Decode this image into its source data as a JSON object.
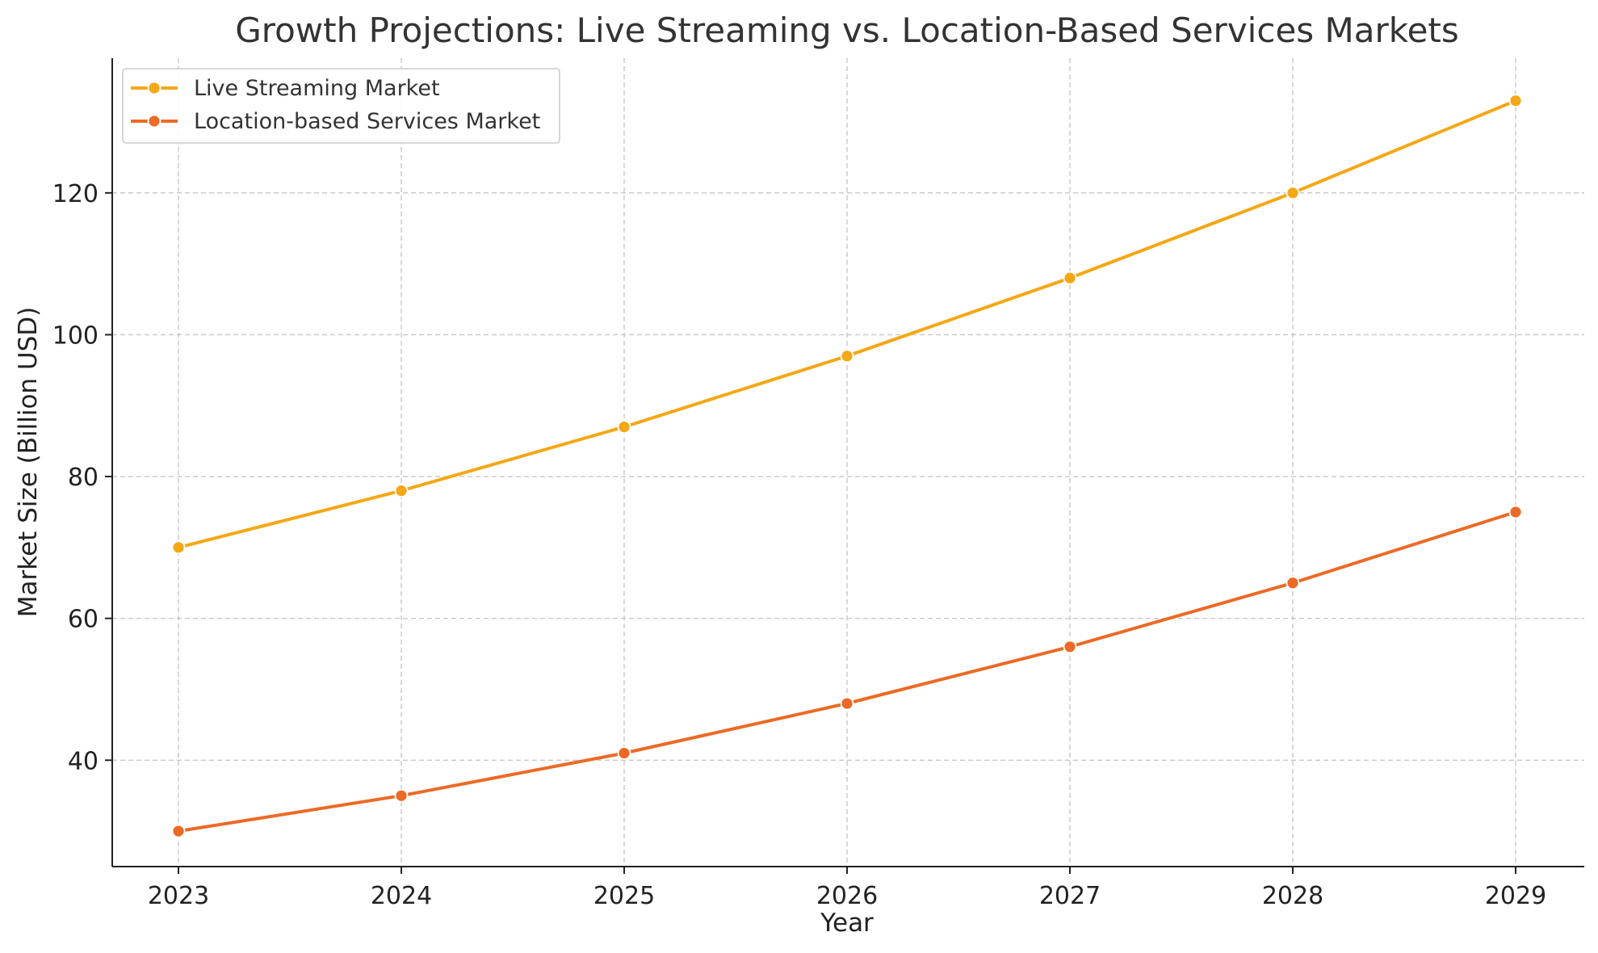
{
  "chart_data": {
    "type": "line",
    "title": "Growth Projections: Live Streaming vs. Location-Based Services Markets",
    "xlabel": "Year",
    "ylabel": "Market Size (Billion USD)",
    "x": [
      2023,
      2024,
      2025,
      2026,
      2027,
      2028,
      2029
    ],
    "xticks": [
      "2023",
      "2024",
      "2025",
      "2026",
      "2027",
      "2028",
      "2029"
    ],
    "yticks": [
      "40",
      "60",
      "80",
      "100",
      "120"
    ],
    "ylim": [
      25,
      139
    ],
    "grid": true,
    "legend_position": "top-left",
    "series": [
      {
        "name": "Live Streaming Market",
        "color": "#f5a714",
        "marker": "circle",
        "values": [
          70,
          78,
          87,
          97,
          108,
          120,
          133
        ]
      },
      {
        "name": "Location-based Services Market",
        "color": "#ec6a26",
        "marker": "circle",
        "values": [
          30,
          35,
          41,
          48,
          56,
          65,
          75
        ]
      }
    ]
  }
}
